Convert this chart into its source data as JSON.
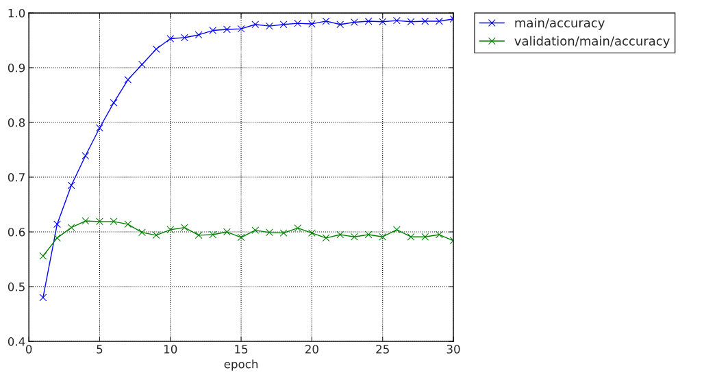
{
  "chart_data": {
    "type": "line",
    "xlabel": "epoch",
    "xlim": [
      0,
      30
    ],
    "xticks": [
      0,
      5,
      10,
      15,
      20,
      25,
      30
    ],
    "ylim": [
      0.4,
      1.0
    ],
    "yticks": [
      {
        "value": 0.4,
        "label": "0.4"
      },
      {
        "value": 0.5,
        "label": "0.5"
      },
      {
        "value": 0.6,
        "label": "0.6"
      },
      {
        "value": 0.7,
        "label": "0.7"
      },
      {
        "value": 0.8,
        "label": "0.8"
      },
      {
        "value": 0.9,
        "label": "0.9"
      },
      {
        "value": 1.0,
        "label": "1.0"
      }
    ],
    "grid": true,
    "legend": "top right",
    "marker": "cross",
    "line_style": "solid",
    "x": [
      1,
      2,
      3,
      4,
      5,
      6,
      7,
      8,
      9,
      10,
      11,
      12,
      13,
      14,
      15,
      16,
      17,
      18,
      19,
      20,
      21,
      22,
      23,
      24,
      25,
      26,
      27,
      28,
      29,
      30
    ],
    "series": [
      {
        "name": "main/accuracy",
        "color": "#0000ff",
        "values": [
          0.48,
          0.614,
          0.685,
          0.739,
          0.79,
          0.836,
          0.878,
          0.906,
          0.934,
          0.953,
          0.955,
          0.96,
          0.968,
          0.97,
          0.971,
          0.979,
          0.976,
          0.979,
          0.981,
          0.98,
          0.985,
          0.979,
          0.983,
          0.985,
          0.984,
          0.986,
          0.984,
          0.985,
          0.985,
          0.989
        ]
      },
      {
        "name": "validation/main/accuracy",
        "color": "#008000",
        "values": [
          0.556,
          0.589,
          0.608,
          0.62,
          0.619,
          0.619,
          0.614,
          0.599,
          0.594,
          0.604,
          0.608,
          0.594,
          0.595,
          0.6,
          0.59,
          0.603,
          0.599,
          0.598,
          0.607,
          0.598,
          0.589,
          0.595,
          0.591,
          0.595,
          0.591,
          0.604,
          0.591,
          0.591,
          0.595,
          0.584
        ]
      }
    ]
  }
}
